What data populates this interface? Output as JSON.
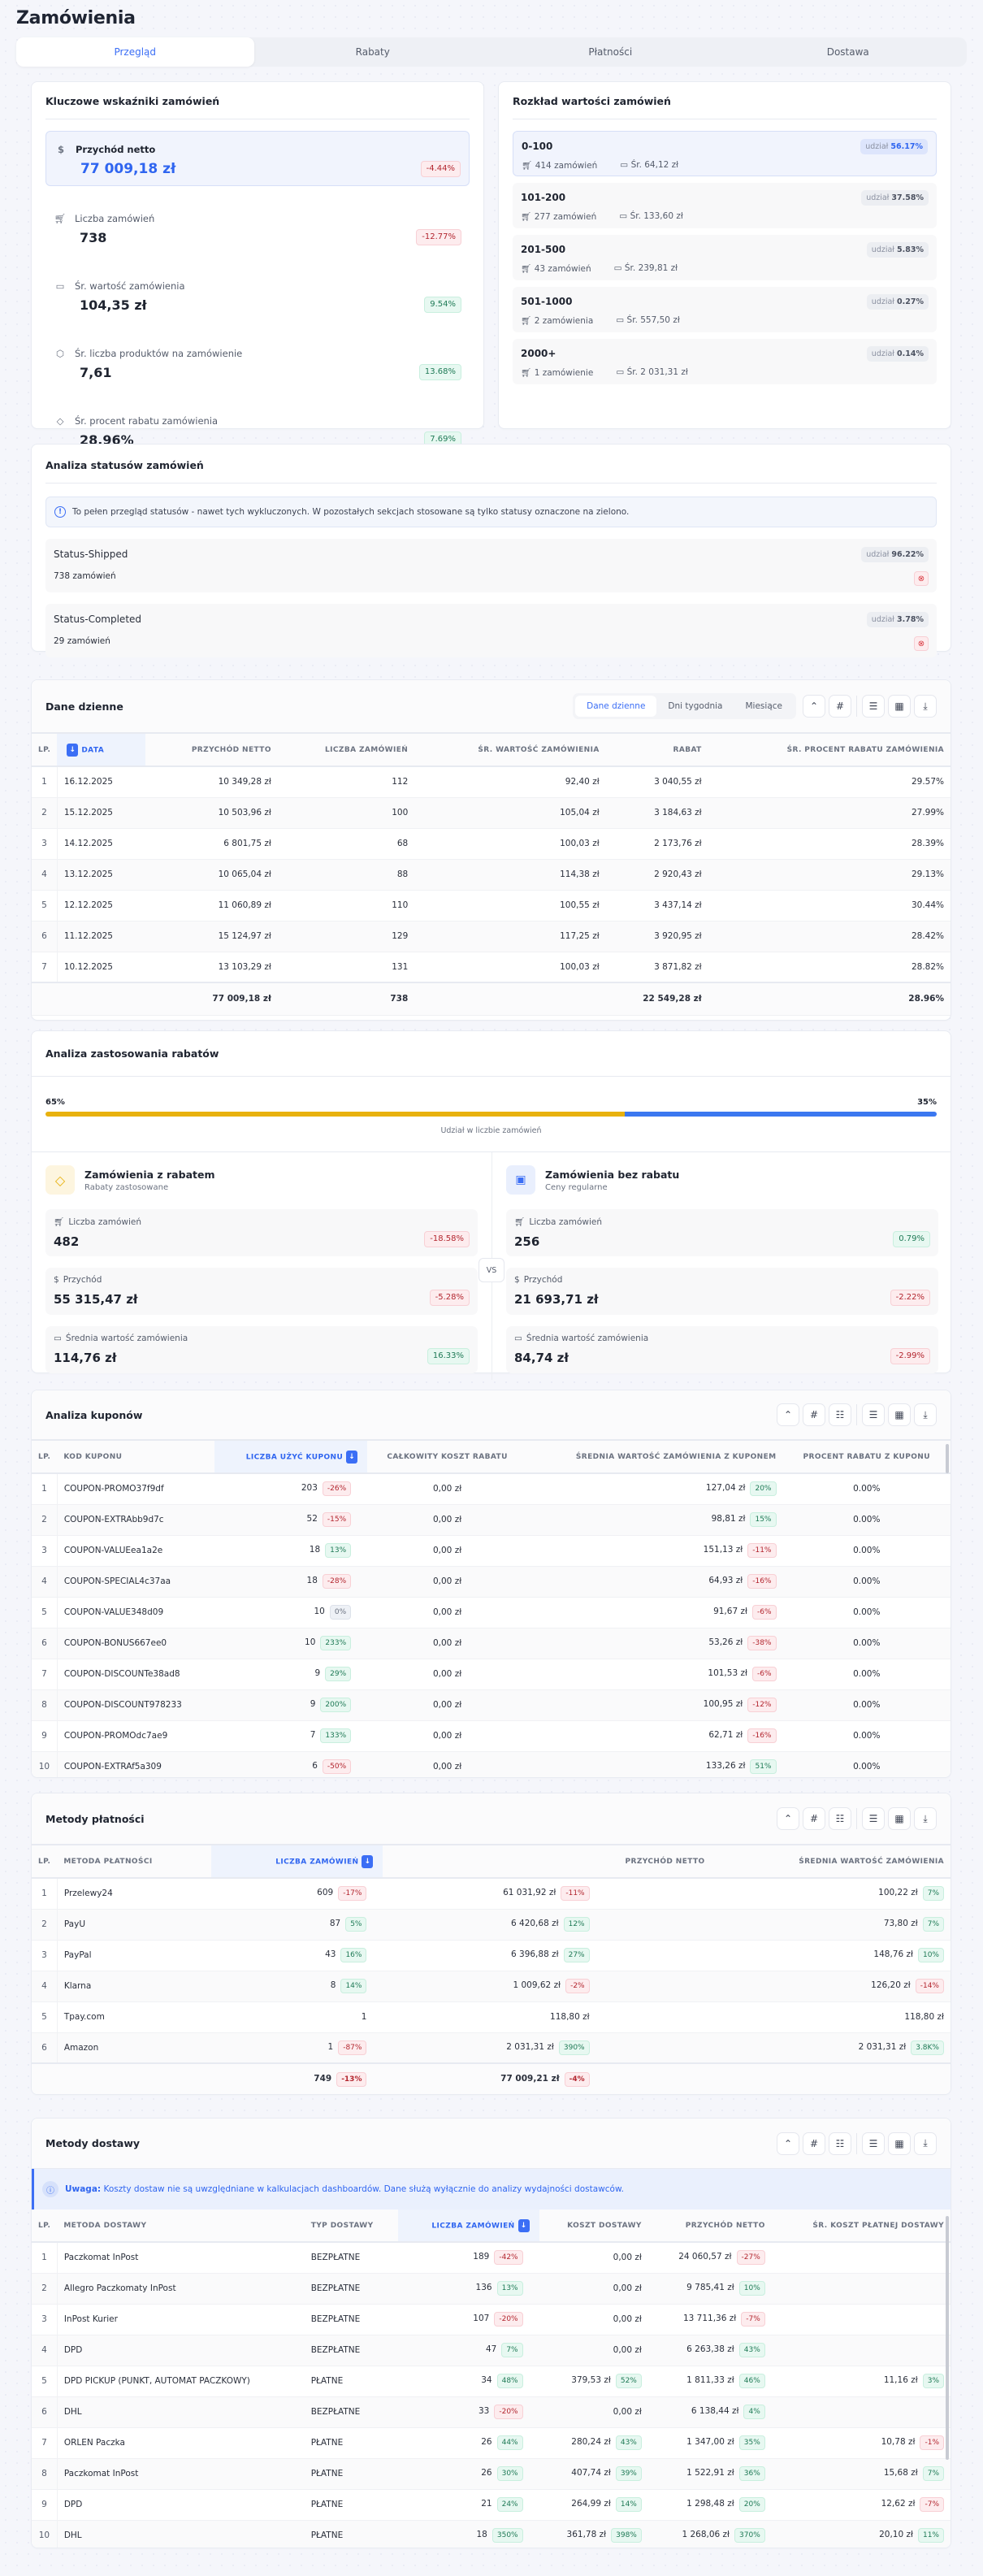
{
  "page": {
    "title": "Zamówienia"
  },
  "tabs": [
    {
      "label": "Przegląd",
      "active": true
    },
    {
      "label": "Rabaty",
      "active": false
    },
    {
      "label": "Płatności",
      "active": false
    },
    {
      "label": "Dostawa",
      "active": false
    }
  ],
  "kpi": {
    "title": "Kluczowe wskaźniki zamówień",
    "items": [
      {
        "icon": "dollar-icon",
        "label": "Przychód netto",
        "value": "77 009,18 zł",
        "change": "-4.44%",
        "trend": "neg"
      },
      {
        "icon": "cart-icon",
        "label": "Liczba zamówień",
        "value": "738",
        "change": "-12.77%",
        "trend": "neg"
      },
      {
        "icon": "wallet-icon",
        "label": "Śr. wartość zamówienia",
        "value": "104,35 zł",
        "change": "9.54%",
        "trend": "pos"
      },
      {
        "icon": "box-icon",
        "label": "Śr. liczba produktów na zamówienie",
        "value": "7,61",
        "change": "13.68%",
        "trend": "pos"
      },
      {
        "icon": "tag-icon",
        "label": "Śr. procent rabatu zamówienia",
        "value": "28.96%",
        "change": "7.69%",
        "trend": "pos"
      }
    ]
  },
  "distribution": {
    "title": "Rozkład wartości zamówień",
    "share_label": "udział",
    "ranges": [
      {
        "name": "0-100",
        "orders": "414 zamówień",
        "avg": "Śr. 64,12 zł",
        "share": "56.17%"
      },
      {
        "name": "101-200",
        "orders": "277 zamówień",
        "avg": "Śr. 133,60 zł",
        "share": "37.58%"
      },
      {
        "name": "201-500",
        "orders": "43 zamówień",
        "avg": "Śr. 239,81 zł",
        "share": "5.83%"
      },
      {
        "name": "501-1000",
        "orders": "2 zamówienia",
        "avg": "Śr. 557,50 zł",
        "share": "0.27%"
      },
      {
        "name": "2000+",
        "orders": "1 zamówienie",
        "avg": "Śr. 2 031,31 zł",
        "share": "0.14%"
      }
    ]
  },
  "statuses": {
    "title": "Analiza statusów zamówień",
    "info": "To pełen przegląd statusów - nawet tych wykluczonych. W pozostałych sekcjach stosowane są tylko statusy oznaczone na zielono.",
    "share_label": "udział",
    "items": [
      {
        "name": "Status-Shipped",
        "count": "738 zamówień",
        "share": "96.22%"
      },
      {
        "name": "Status-Completed",
        "count": "29 zamówień",
        "share": "3.78%"
      }
    ]
  },
  "daily": {
    "title": "Dane dzienne",
    "views": [
      "Dane dzienne",
      "Dni tygodnia",
      "Miesiące"
    ],
    "columns": [
      "LP.",
      "DATA",
      "PRZYCHÓD NETTO",
      "LICZBA ZAMÓWIEŃ",
      "ŚR. WARTOŚĆ ZAMÓWIENIA",
      "RABAT",
      "ŚR. PROCENT RABATU ZAMÓWIENIA"
    ],
    "rows": [
      [
        "1",
        "16.12.2025",
        "10 349,28 zł",
        "112",
        "92,40 zł",
        "3 040,55 zł",
        "29.57%"
      ],
      [
        "2",
        "15.12.2025",
        "10 503,96 zł",
        "100",
        "105,04 zł",
        "3 184,63 zł",
        "27.99%"
      ],
      [
        "3",
        "14.12.2025",
        "6 801,75 zł",
        "68",
        "100,03 zł",
        "2 173,76 zł",
        "28.39%"
      ],
      [
        "4",
        "13.12.2025",
        "10 065,04 zł",
        "88",
        "114,38 zł",
        "2 920,43 zł",
        "29.13%"
      ],
      [
        "5",
        "12.12.2025",
        "11 060,89 zł",
        "110",
        "100,55 zł",
        "3 437,14 zł",
        "30.44%"
      ],
      [
        "6",
        "11.12.2025",
        "15 124,97 zł",
        "129",
        "117,25 zł",
        "3 920,95 zł",
        "28.42%"
      ],
      [
        "7",
        "10.12.2025",
        "13 103,29 zł",
        "131",
        "100,03 zł",
        "3 871,82 zł",
        "28.82%"
      ]
    ],
    "totals": [
      "",
      "",
      "77 009,18 zł",
      "738",
      "",
      "22 549,28 zł",
      "28.96%"
    ]
  },
  "discounts": {
    "title": "Analiza zastosowania rabatów",
    "left_pct": "65%",
    "right_pct": "35%",
    "bar_caption": "Udział w liczbie zamówień",
    "colors": {
      "with": "#e8b10e",
      "without": "#3b78f0"
    },
    "vs": "VS",
    "with": {
      "title": "Zamówienia z rabatem",
      "subtitle": "Rabaty zastosowane",
      "metrics": [
        {
          "label": "Liczba zamówień",
          "value": "482",
          "change": "-18.58%",
          "trend": "neg"
        },
        {
          "label": "Przychód",
          "value": "55 315,47 zł",
          "change": "-5.28%",
          "trend": "neg"
        },
        {
          "label": "Średnia wartość zamówienia",
          "value": "114,76 zł",
          "change": "16.33%",
          "trend": "pos"
        }
      ]
    },
    "without": {
      "title": "Zamówienia bez rabatu",
      "subtitle": "Ceny regularne",
      "metrics": [
        {
          "label": "Liczba zamówień",
          "value": "256",
          "change": "0.79%",
          "trend": "pos"
        },
        {
          "label": "Przychód",
          "value": "21 693,71 zł",
          "change": "-2.22%",
          "trend": "neg"
        },
        {
          "label": "Średnia wartość zamówienia",
          "value": "84,74 zł",
          "change": "-2.99%",
          "trend": "neg"
        }
      ]
    }
  },
  "coupons": {
    "title": "Analiza kuponów",
    "columns": [
      "LP.",
      "KOD KUPONU",
      "LICZBA UŻYĆ KUPONU",
      "CAŁKOWITY KOSZT RABATU",
      "ŚREDNIA WARTOŚĆ ZAMÓWIENIA Z KUPONEM",
      "PROCENT RABATU Z KUPONU"
    ],
    "rows": [
      {
        "lp": "1",
        "code": "COUPON-PROMO37f9df",
        "uses": "203",
        "uses_ch": "-26%",
        "uses_tr": "neg",
        "cost": "0,00 zł",
        "avg": "127,04 zł",
        "avg_ch": "20%",
        "avg_tr": "pos",
        "pct": "0.00%"
      },
      {
        "lp": "2",
        "code": "COUPON-EXTRAbb9d7c",
        "uses": "52",
        "uses_ch": "-15%",
        "uses_tr": "neg",
        "cost": "0,00 zł",
        "avg": "98,81 zł",
        "avg_ch": "15%",
        "avg_tr": "pos",
        "pct": "0.00%"
      },
      {
        "lp": "3",
        "code": "COUPON-VALUEea1a2e",
        "uses": "18",
        "uses_ch": "13%",
        "uses_tr": "pos",
        "cost": "0,00 zł",
        "avg": "151,13 zł",
        "avg_ch": "-11%",
        "avg_tr": "neg",
        "pct": "0.00%"
      },
      {
        "lp": "4",
        "code": "COUPON-SPECIAL4c37aa",
        "uses": "18",
        "uses_ch": "-28%",
        "uses_tr": "neg",
        "cost": "0,00 zł",
        "avg": "64,93 zł",
        "avg_ch": "-16%",
        "avg_tr": "neg",
        "pct": "0.00%"
      },
      {
        "lp": "5",
        "code": "COUPON-VALUE348d09",
        "uses": "10",
        "uses_ch": "0%",
        "uses_tr": "neu",
        "cost": "0,00 zł",
        "avg": "91,67 zł",
        "avg_ch": "-6%",
        "avg_tr": "neg",
        "pct": "0.00%"
      },
      {
        "lp": "6",
        "code": "COUPON-BONUS667ee0",
        "uses": "10",
        "uses_ch": "233%",
        "uses_tr": "pos",
        "cost": "0,00 zł",
        "avg": "53,26 zł",
        "avg_ch": "-38%",
        "avg_tr": "neg",
        "pct": "0.00%"
      },
      {
        "lp": "7",
        "code": "COUPON-DISCOUNTe38ad8",
        "uses": "9",
        "uses_ch": "29%",
        "uses_tr": "pos",
        "cost": "0,00 zł",
        "avg": "101,53 zł",
        "avg_ch": "-6%",
        "avg_tr": "neg",
        "pct": "0.00%"
      },
      {
        "lp": "8",
        "code": "COUPON-DISCOUNT978233",
        "uses": "9",
        "uses_ch": "200%",
        "uses_tr": "pos",
        "cost": "0,00 zł",
        "avg": "100,95 zł",
        "avg_ch": "-12%",
        "avg_tr": "neg",
        "pct": "0.00%"
      },
      {
        "lp": "9",
        "code": "COUPON-PROMOdc7ae9",
        "uses": "7",
        "uses_ch": "133%",
        "uses_tr": "pos",
        "cost": "0,00 zł",
        "avg": "62,71 zł",
        "avg_ch": "-16%",
        "avg_tr": "neg",
        "pct": "0.00%"
      },
      {
        "lp": "10",
        "code": "COUPON-EXTRAf5a309",
        "uses": "6",
        "uses_ch": "-50%",
        "uses_tr": "neg",
        "cost": "0,00 zł",
        "avg": "133,26 zł",
        "avg_ch": "51%",
        "avg_tr": "pos",
        "pct": "0.00%"
      }
    ]
  },
  "payments": {
    "title": "Metody płatności",
    "columns": [
      "LP.",
      "METODA PŁATNOŚCI",
      "LICZBA ZAMÓWIEŃ",
      "PRZYCHÓD NETTO",
      "ŚREDNIA WARTOŚĆ ZAMÓWIENIA"
    ],
    "rows": [
      {
        "lp": "1",
        "name": "Przelewy24",
        "orders": "609",
        "orders_ch": "-17%",
        "orders_tr": "neg",
        "rev": "61 031,92 zł",
        "rev_ch": "-11%",
        "rev_tr": "neg",
        "avg": "100,22 zł",
        "avg_ch": "7%",
        "avg_tr": "pos"
      },
      {
        "lp": "2",
        "name": "PayU",
        "orders": "87",
        "orders_ch": "5%",
        "orders_tr": "pos",
        "rev": "6 420,68 zł",
        "rev_ch": "12%",
        "rev_tr": "pos",
        "avg": "73,80 zł",
        "avg_ch": "7%",
        "avg_tr": "pos"
      },
      {
        "lp": "3",
        "name": "PayPal",
        "orders": "43",
        "orders_ch": "16%",
        "orders_tr": "pos",
        "rev": "6 396,88 zł",
        "rev_ch": "27%",
        "rev_tr": "pos",
        "avg": "148,76 zł",
        "avg_ch": "10%",
        "avg_tr": "pos"
      },
      {
        "lp": "4",
        "name": "Klarna",
        "orders": "8",
        "orders_ch": "14%",
        "orders_tr": "pos",
        "rev": "1 009,62 zł",
        "rev_ch": "-2%",
        "rev_tr": "neg",
        "avg": "126,20 zł",
        "avg_ch": "-14%",
        "avg_tr": "neg"
      },
      {
        "lp": "5",
        "name": "Tpay.com",
        "orders": "1",
        "orders_ch": "",
        "orders_tr": "",
        "rev": "118,80 zł",
        "rev_ch": "",
        "rev_tr": "",
        "avg": "118,80 zł",
        "avg_ch": "",
        "avg_tr": ""
      },
      {
        "lp": "6",
        "name": "Amazon",
        "orders": "1",
        "orders_ch": "-87%",
        "orders_tr": "neg",
        "rev": "2 031,31 zł",
        "rev_ch": "390%",
        "rev_tr": "pos",
        "avg": "2 031,31 zł",
        "avg_ch": "3.8K%",
        "avg_tr": "pos"
      }
    ],
    "totals": {
      "orders": "749",
      "orders_ch": "-13%",
      "rev": "77 009,21 zł",
      "rev_ch": "-4%"
    }
  },
  "delivery": {
    "title": "Metody dostawy",
    "notice_bold": "Uwaga:",
    "notice": "Koszty dostaw nie są uwzględniane w kalkulacjach dashboardów. Dane służą wyłącznie do analizy wydajności dostawców.",
    "columns": [
      "LP.",
      "METODA DOSTAWY",
      "TYP DOSTAWY",
      "LICZBA ZAMÓWIEŃ",
      "KOSZT DOSTAWY",
      "PRZYCHÓD NETTO",
      "ŚR. KOSZT PŁATNEJ DOSTAWY"
    ],
    "rows": [
      {
        "lp": "1",
        "name": "Paczkomat InPost",
        "type": "BEZPŁATNE",
        "orders": "189",
        "orders_ch": "-42%",
        "orders_tr": "neg",
        "cost": "0,00 zł",
        "cost_ch": "",
        "cost_tr": "",
        "rev": "24 060,57 zł",
        "rev_ch": "-27%",
        "rev_tr": "neg",
        "avg": "",
        "avg_ch": "",
        "avg_tr": ""
      },
      {
        "lp": "2",
        "name": "Allegro Paczkomaty InPost",
        "type": "BEZPŁATNE",
        "orders": "136",
        "orders_ch": "13%",
        "orders_tr": "pos",
        "cost": "0,00 zł",
        "cost_ch": "",
        "cost_tr": "",
        "rev": "9 785,41 zł",
        "rev_ch": "10%",
        "rev_tr": "pos",
        "avg": "",
        "avg_ch": "",
        "avg_tr": ""
      },
      {
        "lp": "3",
        "name": "InPost Kurier",
        "type": "BEZPŁATNE",
        "orders": "107",
        "orders_ch": "-20%",
        "orders_tr": "neg",
        "cost": "0,00 zł",
        "cost_ch": "",
        "cost_tr": "",
        "rev": "13 711,36 zł",
        "rev_ch": "-7%",
        "rev_tr": "neg",
        "avg": "",
        "avg_ch": "",
        "avg_tr": ""
      },
      {
        "lp": "4",
        "name": "DPD",
        "type": "BEZPŁATNE",
        "orders": "47",
        "orders_ch": "7%",
        "orders_tr": "pos",
        "cost": "0,00 zł",
        "cost_ch": "",
        "cost_tr": "",
        "rev": "6 263,38 zł",
        "rev_ch": "43%",
        "rev_tr": "pos",
        "avg": "",
        "avg_ch": "",
        "avg_tr": ""
      },
      {
        "lp": "5",
        "name": "DPD PICKUP (PUNKT, AUTOMAT PACZKOWY)",
        "type": "PŁATNE",
        "orders": "34",
        "orders_ch": "48%",
        "orders_tr": "pos",
        "cost": "379,53 zł",
        "cost_ch": "52%",
        "cost_tr": "pos",
        "rev": "1 811,33 zł",
        "rev_ch": "46%",
        "rev_tr": "pos",
        "avg": "11,16 zł",
        "avg_ch": "3%",
        "avg_tr": "pos"
      },
      {
        "lp": "6",
        "name": "DHL",
        "type": "BEZPŁATNE",
        "orders": "33",
        "orders_ch": "-20%",
        "orders_tr": "neg",
        "cost": "0,00 zł",
        "cost_ch": "",
        "cost_tr": "",
        "rev": "6 138,44 zł",
        "rev_ch": "4%",
        "rev_tr": "pos",
        "avg": "",
        "avg_ch": "",
        "avg_tr": ""
      },
      {
        "lp": "7",
        "name": "ORLEN Paczka",
        "type": "PŁATNE",
        "orders": "26",
        "orders_ch": "44%",
        "orders_tr": "pos",
        "cost": "280,24 zł",
        "cost_ch": "43%",
        "cost_tr": "pos",
        "rev": "1 347,00 zł",
        "rev_ch": "35%",
        "rev_tr": "pos",
        "avg": "10,78 zł",
        "avg_ch": "-1%",
        "avg_tr": "neg"
      },
      {
        "lp": "8",
        "name": "Paczkomat InPost",
        "type": "PŁATNE",
        "orders": "26",
        "orders_ch": "30%",
        "orders_tr": "pos",
        "cost": "407,74 zł",
        "cost_ch": "39%",
        "cost_tr": "pos",
        "rev": "1 522,91 zł",
        "rev_ch": "36%",
        "rev_tr": "pos",
        "avg": "15,68 zł",
        "avg_ch": "7%",
        "avg_tr": "pos"
      },
      {
        "lp": "9",
        "name": "DPD",
        "type": "PŁATNE",
        "orders": "21",
        "orders_ch": "24%",
        "orders_tr": "pos",
        "cost": "264,99 zł",
        "cost_ch": "14%",
        "cost_tr": "pos",
        "rev": "1 298,48 zł",
        "rev_ch": "20%",
        "rev_tr": "pos",
        "avg": "12,62 zł",
        "avg_ch": "-7%",
        "avg_tr": "neg"
      },
      {
        "lp": "10",
        "name": "DHL",
        "type": "PŁATNE",
        "orders": "18",
        "orders_ch": "350%",
        "orders_tr": "pos",
        "cost": "361,78 zł",
        "cost_ch": "398%",
        "cost_tr": "pos",
        "rev": "1 268,06 zł",
        "rev_ch": "370%",
        "rev_tr": "pos",
        "avg": "20,10 zł",
        "avg_ch": "11%",
        "avg_tr": "pos"
      }
    ]
  }
}
